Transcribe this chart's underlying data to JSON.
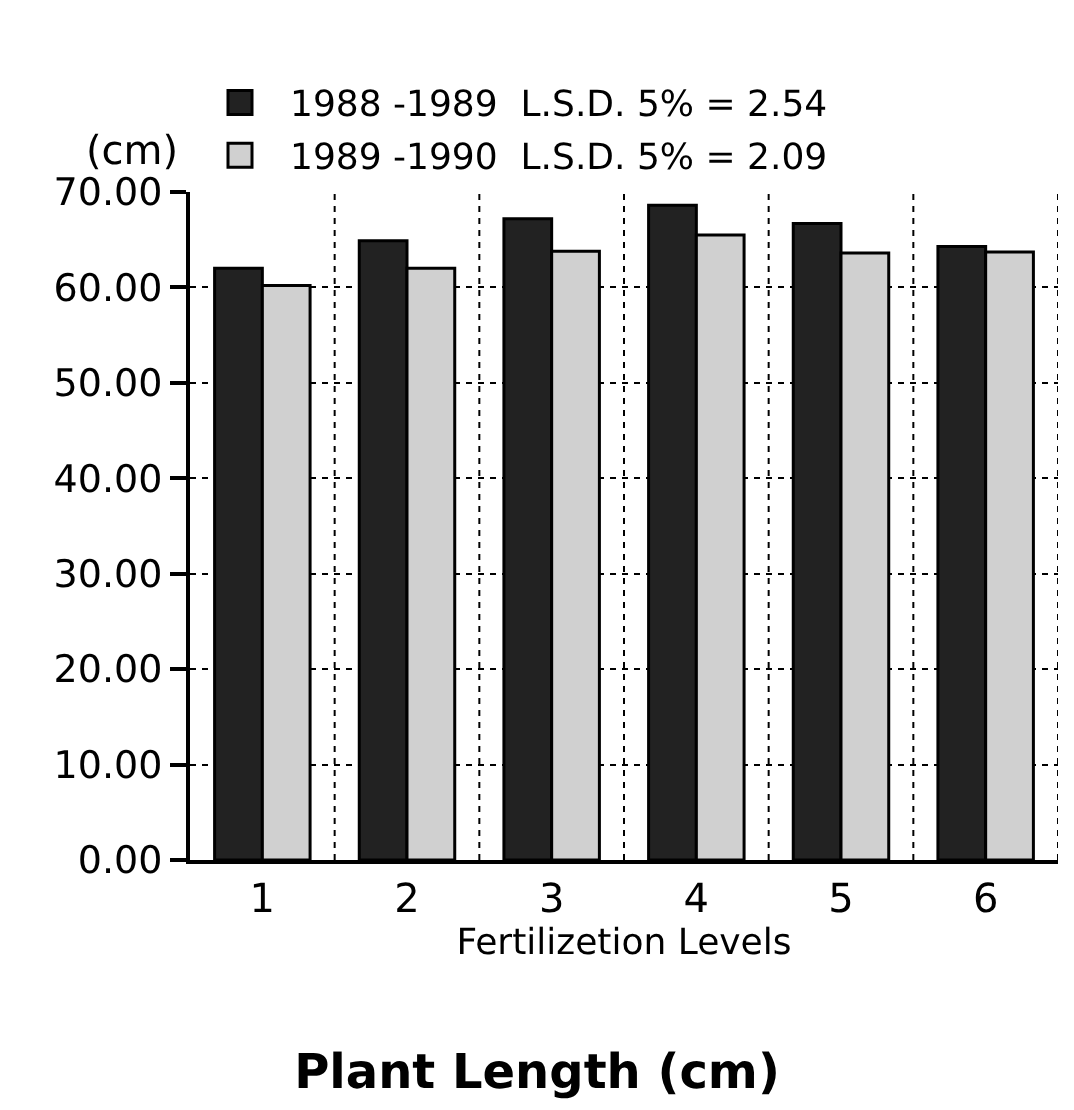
{
  "chart_data": {
    "type": "bar",
    "title": "Plant Length (cm)",
    "xlabel": "Fertilizetion Levels",
    "ylabel": "(cm)",
    "categories": [
      "1",
      "2",
      "3",
      "4",
      "5",
      "6"
    ],
    "series": [
      {
        "name": "1988 -1989  L.S.D. 5% = 2.54",
        "color": "#222222",
        "values": [
          62.0,
          64.9,
          67.2,
          68.6,
          66.7,
          64.3
        ]
      },
      {
        "name": "1989 -1990  L.S.D. 5% = 2.09",
        "color": "#d0d0d0",
        "values": [
          60.2,
          62.0,
          63.8,
          65.5,
          63.6,
          63.7
        ]
      }
    ],
    "ylim": [
      0,
      70
    ],
    "yticks": [
      {
        "value": 0,
        "label": "0.00"
      },
      {
        "value": 10,
        "label": "10.00"
      },
      {
        "value": 20,
        "label": "20.00"
      },
      {
        "value": 30,
        "label": "30.00"
      },
      {
        "value": 40,
        "label": "40.00"
      },
      {
        "value": 50,
        "label": "50.00"
      },
      {
        "value": 60,
        "label": "60.00"
      },
      {
        "value": 70,
        "label": "70.00"
      }
    ],
    "grid": true,
    "legend": "top left"
  }
}
